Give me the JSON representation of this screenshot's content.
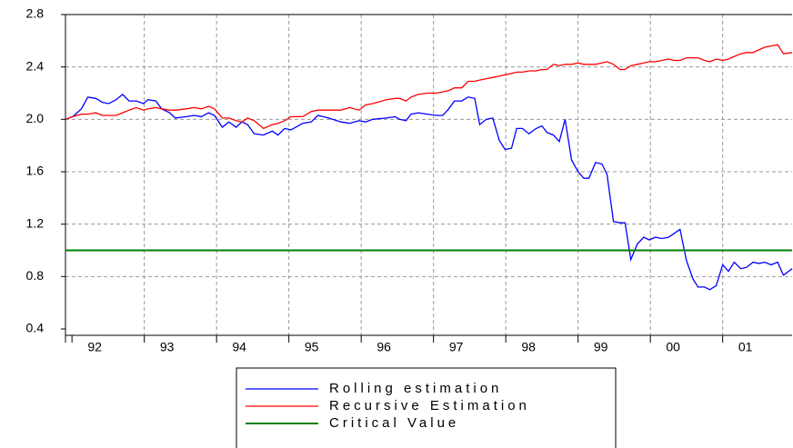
{
  "chart_data": {
    "type": "line",
    "xlim": [
      1991.91,
      2001.96
    ],
    "xticks": [
      {
        "value": 1992,
        "label": "92"
      },
      {
        "value": 1993,
        "label": "93"
      },
      {
        "value": 1994,
        "label": "94"
      },
      {
        "value": 1995,
        "label": "95"
      },
      {
        "value": 1996,
        "label": "96"
      },
      {
        "value": 1997,
        "label": "97"
      },
      {
        "value": 1998,
        "label": "98"
      },
      {
        "value": 1999,
        "label": "99"
      },
      {
        "value": 2000,
        "label": "00"
      },
      {
        "value": 2001,
        "label": "01"
      }
    ],
    "ylim": [
      0.4,
      2.8
    ],
    "yticks": [
      0.4,
      0.8,
      1.2,
      1.6,
      {
        "value": 2,
        "label": "2.0"
      },
      2.4,
      2.8
    ],
    "grid": true,
    "x": [
      1991.91,
      1992.01,
      1992.13,
      1992.22,
      1992.33,
      1992.42,
      1992.51,
      1992.61,
      1992.7,
      1992.79,
      1992.89,
      1992.99,
      1993.05,
      1993.16,
      1993.24,
      1993.35,
      1993.43,
      1993.58,
      1993.69,
      1993.79,
      1993.89,
      1993.97,
      1994.08,
      1994.17,
      1994.27,
      1994.35,
      1994.43,
      1994.52,
      1994.65,
      1994.77,
      1994.85,
      1994.94,
      1995.03,
      1995.19,
      1995.31,
      1995.4,
      1995.55,
      1995.72,
      1995.84,
      1995.97,
      1996.06,
      1996.16,
      1996.35,
      1996.47,
      1996.53,
      1996.62,
      1996.69,
      1996.79,
      1996.91,
      1997.04,
      1997.13,
      1997.21,
      1997.29,
      1997.39,
      1997.48,
      1997.57,
      1997.64,
      1997.73,
      1997.82,
      1997.91,
      1997.99,
      1998.08,
      1998.15,
      1998.23,
      1998.32,
      1998.42,
      1998.5,
      1998.57,
      1998.66,
      1998.74,
      1998.82,
      1998.91,
      1999.0,
      1999.08,
      1999.15,
      1999.24,
      1999.33,
      1999.4,
      1999.49,
      1999.58,
      1999.65,
      1999.73,
      1999.82,
      1999.91,
      1999.98,
      2000.07,
      2000.16,
      2000.25,
      2000.33,
      2000.41,
      2000.5,
      2000.59,
      2000.66,
      2000.75,
      2000.82,
      2000.91,
      2001.0,
      2001.08,
      2001.16,
      2001.25,
      2001.33,
      2001.42,
      2001.5,
      2001.58,
      2001.67,
      2001.76,
      2001.84,
      2001.96
    ],
    "series": [
      {
        "name": "Rolling estimation",
        "color": "#0000ff",
        "values": [
          2.0,
          2.02,
          2.08,
          2.17,
          2.16,
          2.13,
          2.12,
          2.15,
          2.19,
          2.14,
          2.14,
          2.12,
          2.15,
          2.14,
          2.08,
          2.05,
          2.01,
          2.02,
          2.03,
          2.02,
          2.05,
          2.03,
          1.94,
          1.98,
          1.94,
          1.98,
          1.96,
          1.89,
          1.88,
          1.91,
          1.88,
          1.93,
          1.92,
          1.97,
          1.98,
          2.03,
          2.01,
          1.98,
          1.97,
          1.99,
          1.98,
          2.0,
          2.01,
          2.02,
          2.0,
          1.99,
          2.04,
          2.05,
          2.04,
          2.03,
          2.03,
          2.08,
          2.14,
          2.14,
          2.17,
          2.16,
          1.96,
          2.0,
          2.01,
          1.84,
          1.77,
          1.78,
          1.93,
          1.93,
          1.89,
          1.93,
          1.95,
          1.9,
          1.88,
          1.83,
          2.0,
          1.69,
          1.6,
          1.55,
          1.55,
          1.67,
          1.66,
          1.58,
          1.22,
          1.21,
          1.21,
          0.93,
          1.05,
          1.1,
          1.08,
          1.1,
          1.09,
          1.1,
          1.13,
          1.16,
          0.92,
          0.78,
          0.72,
          0.72,
          0.7,
          0.73,
          0.89,
          0.84,
          0.91,
          0.86,
          0.87,
          0.91,
          0.9,
          0.91,
          0.89,
          0.91,
          0.81,
          0.86
        ]
      },
      {
        "name": "Recursive Estimation",
        "color": "#ff0000",
        "values": [
          2.0,
          2.02,
          2.04,
          2.04,
          2.05,
          2.03,
          2.03,
          2.03,
          2.05,
          2.07,
          2.09,
          2.07,
          2.08,
          2.09,
          2.08,
          2.07,
          2.07,
          2.08,
          2.09,
          2.08,
          2.1,
          2.08,
          2.01,
          2.01,
          1.99,
          1.98,
          2.01,
          1.99,
          1.93,
          1.96,
          1.97,
          1.99,
          2.02,
          2.02,
          2.06,
          2.07,
          2.07,
          2.07,
          2.09,
          2.07,
          2.11,
          2.12,
          2.15,
          2.16,
          2.16,
          2.14,
          2.17,
          2.19,
          2.2,
          2.2,
          2.21,
          2.22,
          2.24,
          2.24,
          2.29,
          2.29,
          2.3,
          2.31,
          2.32,
          2.33,
          2.34,
          2.35,
          2.36,
          2.36,
          2.37,
          2.37,
          2.38,
          2.38,
          2.42,
          2.41,
          2.42,
          2.42,
          2.43,
          2.42,
          2.42,
          2.42,
          2.43,
          2.44,
          2.42,
          2.38,
          2.38,
          2.41,
          2.42,
          2.43,
          2.44,
          2.44,
          2.45,
          2.46,
          2.45,
          2.45,
          2.47,
          2.47,
          2.47,
          2.45,
          2.44,
          2.46,
          2.45,
          2.46,
          2.48,
          2.5,
          2.51,
          2.51,
          2.53,
          2.55,
          2.56,
          2.57,
          2.5,
          2.51
        ]
      },
      {
        "name": "Critical Value",
        "color": "#008000",
        "x": [
          1991.91,
          2001.96
        ],
        "values": [
          1.0,
          1.0
        ]
      }
    ]
  }
}
